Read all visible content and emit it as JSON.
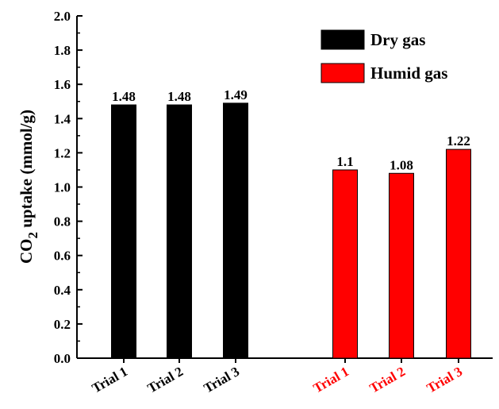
{
  "chart_data": {
    "type": "bar",
    "ylabel": "CO",
    "ylabel_subscript": "2",
    "ylabel_rest": " uptake (mmol/g)",
    "ylim": [
      0,
      2.0
    ],
    "yticks": [
      "0.0",
      "0.2",
      "0.4",
      "0.6",
      "0.8",
      "1.0",
      "1.2",
      "1.4",
      "1.6",
      "1.8",
      "2.0"
    ],
    "grid": false,
    "legend_position": "top-right",
    "series": [
      {
        "name": "Dry gas",
        "color": "#000000",
        "label_color": "#000000",
        "categories": [
          "Trial 1",
          "Trial 2",
          "Trial 3"
        ],
        "values": [
          1.48,
          1.48,
          1.49
        ],
        "value_labels": [
          "1.48",
          "1.48",
          "1.49"
        ]
      },
      {
        "name": "Humid gas",
        "color": "#ff0000",
        "label_color": "#ff0000",
        "categories": [
          "Trial 1",
          "Trial 2",
          "Trial 3"
        ],
        "values": [
          1.1,
          1.08,
          1.22
        ],
        "value_labels": [
          "1.1",
          "1.08",
          "1.22"
        ]
      }
    ]
  }
}
